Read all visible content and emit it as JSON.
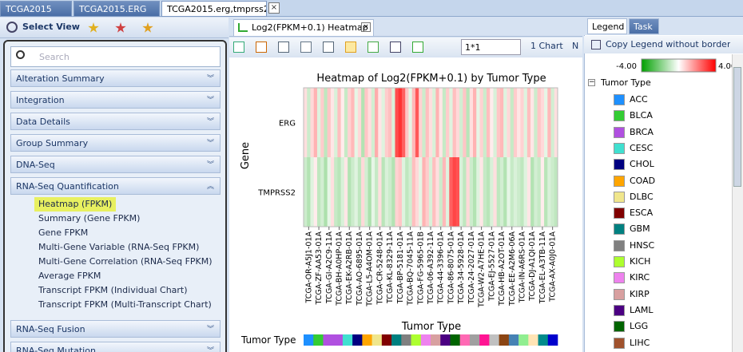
{
  "tabs": [
    "TCGA2015",
    "TCGA2015.ERG",
    "TCGA2015.erg,tmprss2"
  ],
  "left_panel": {
    "toolbar": "Select View",
    "search_placeholder": "Search",
    "sections": [
      {
        "title": "Alteration Summary"
      },
      {
        "title": "Integration"
      },
      {
        "title": "Data Details"
      },
      {
        "title": "Group Summary"
      },
      {
        "title": "DNA-Seq"
      },
      {
        "title": "RNA-Seq Quantification",
        "items": [
          "Heatmap (FPKM)",
          "Summary (Gene FPKM)",
          "Gene FPKM",
          "Multi-Gene Variable (RNA-Seq FPKM)",
          "Multi-Gene Correlation (RNA-Seq FPKM)",
          "Average FPKM",
          "Transcript FPKM (Individual Chart)",
          "Transcript FPKM (Multi-Transcript Chart)"
        ]
      },
      {
        "title": "RNA-Seq Fusion"
      },
      {
        "title": "RNA-Seq Mutation"
      }
    ]
  },
  "center": {
    "tab": "Log2(FPKM+0.1) Heatmap",
    "layout": "1*1",
    "chart_count": "1 Chart",
    "truncated": "N"
  },
  "chart_data": {
    "type": "heatmap",
    "title": "Heatmap of Log2(FPKM+0.1) by Tumor Type",
    "y_label": "Gene",
    "x_label": "Tumor Type",
    "rows": [
      "ERG",
      "TMPRSS2"
    ],
    "columns": [
      null,
      "TCGA-OR-A5J1-01A",
      null,
      null,
      "TCGA-ZF-AA53-01A",
      null,
      null,
      "TCGA-GI-A2C9-11A",
      null,
      null,
      "TCGA-BH-A0HP-01A",
      null,
      null,
      "TCGA-EK-A2RB-01A",
      null,
      null,
      "TCGA-AO-6895-01A",
      null,
      null,
      "TCGA-L5-A4OM-01A",
      null,
      null,
      "TCGA-CR-5248-01A",
      null,
      null,
      "TCGA-KL-8329-11A",
      null,
      null,
      "TCGA-BP-5181-01A",
      null,
      null,
      "TCGA-BQ-7045-11A",
      null,
      null,
      "TCGA-FG-5965-01B",
      null,
      null,
      "TCGA-06-A392-11A",
      null,
      null,
      "TCGA-44-3396-01A",
      null,
      null,
      "TCGA-86-8075-01A",
      null,
      null,
      "TCGA-34-5928-01A",
      null,
      null,
      "TCGA-24-2027-01A",
      null,
      null,
      "TCGA-W2-A7HE-01A",
      null,
      null,
      "TCGA-EJ-5527-01A",
      null,
      null,
      "TCGA-HB-A2OT-01A",
      null,
      null,
      "TCGA-EE-A2M6-06A",
      null,
      null,
      "TCGA-IN-A6RS-01A",
      null,
      null,
      "TCGA-DJ-A1QI-01A",
      null,
      null,
      "TCGA-EL-A3TB-11A",
      null,
      null,
      "TCGA-AX-A0J0-01A",
      null
    ],
    "values": [
      [
        0.5,
        -0.8,
        0.6,
        1.2,
        -0.5,
        0.8,
        -1.0,
        0.9,
        0.4,
        -0.6,
        1.0,
        0.3,
        -0.9,
        0.7,
        1.1,
        -0.4,
        0.6,
        -1.2,
        0.9,
        0.5,
        -0.7,
        1.3,
        0.4,
        -0.5,
        0.8,
        1.0,
        -0.6,
        2.8,
        3.2,
        2.5,
        0.9,
        -0.4,
        1.1,
        2.6,
        0.7,
        -0.8,
        1.0,
        0.5,
        -0.6,
        1.2,
        0.4,
        -0.9,
        0.8,
        -0.5,
        1.0,
        0.6,
        -0.7,
        0.9,
        -1.1,
        0.5,
        1.2,
        -0.4,
        0.7,
        -0.8,
        1.0,
        0.3,
        -0.6,
        0.9,
        1.1,
        -0.5,
        0.6,
        -0.9,
        0.8,
        0.4,
        0.7,
        -0.5,
        1.0,
        0.4,
        -0.8,
        0.9,
        0.6,
        -0.4,
        1.1,
        -0.7,
        0.5
      ],
      [
        -0.8,
        -1.2,
        -0.5,
        0.3,
        -1.0,
        -0.7,
        -1.3,
        -0.4,
        0.5,
        -0.9,
        -1.1,
        -0.6,
        0.4,
        -1.2,
        -0.8,
        -0.5,
        -1.0,
        0.6,
        -0.7,
        -1.3,
        -0.4,
        -0.9,
        0.5,
        -1.1,
        -0.6,
        -0.8,
        -1.2,
        0.7,
        0.9,
        -0.5,
        -1.0,
        -0.7,
        1.0,
        0.6,
        -0.4,
        1.2,
        0.8,
        -0.6,
        1.0,
        0.5,
        -0.8,
        1.1,
        -0.5,
        2.5,
        2.9,
        2.7,
        -0.6,
        -1.0,
        0.6,
        -0.8,
        -1.2,
        -0.5,
        0.4,
        -0.9,
        -1.1,
        -0.6,
        0.5,
        -1.0,
        -0.7,
        -1.2,
        -0.4,
        -0.9,
        -0.6,
        -0.8,
        -1.0,
        -0.5,
        0.4,
        -1.2,
        -0.7,
        -0.9,
        0.3,
        -1.1,
        -0.6,
        -0.8,
        -1.0
      ]
    ],
    "colorscale": {
      "min": {
        "value": -4,
        "label": "-4.00"
      },
      "max": {
        "value": 4,
        "label": "4.00"
      },
      "low_color": "#00a000",
      "mid_color": "#ffffff",
      "high_color": "#ff0000"
    },
    "annotation": {
      "label": "Tumor Type",
      "colors": [
        "#1e90ff",
        "#33cc33",
        "#b050e0",
        "#b050e0",
        "#40e0d0",
        "#000080",
        "#ffa500",
        "#f0e68c",
        "#800000",
        "#008080",
        "#808080",
        "#adff2f",
        "#ee82ee",
        "#d8a0a0",
        "#4b0082",
        "#006400",
        "#ff69b4",
        "#a0a0a0",
        "#ff1493",
        "#c0c0c0",
        "#8b4513",
        "#4682b4",
        "#90ee90",
        "#ffe4b5",
        "#008b8b",
        "#0000cd"
      ]
    }
  },
  "legend_panel": {
    "tabs": [
      "Legend",
      "Task"
    ],
    "copy": "Copy Legend  without border",
    "group": "Tumor Type",
    "items": [
      {
        "name": "ACC",
        "color": "#1e90ff"
      },
      {
        "name": "BLCA",
        "color": "#33cc33"
      },
      {
        "name": "BRCA",
        "color": "#b050e0"
      },
      {
        "name": "CESC",
        "color": "#40e0d0"
      },
      {
        "name": "CHOL",
        "color": "#000080"
      },
      {
        "name": "COAD",
        "color": "#ffa500"
      },
      {
        "name": "DLBC",
        "color": "#f0e68c"
      },
      {
        "name": "ESCA",
        "color": "#800000"
      },
      {
        "name": "GBM",
        "color": "#008080"
      },
      {
        "name": "HNSC",
        "color": "#808080"
      },
      {
        "name": "KICH",
        "color": "#adff2f"
      },
      {
        "name": "KIRC",
        "color": "#ee82ee"
      },
      {
        "name": "KIRP",
        "color": "#d8a0a0"
      },
      {
        "name": "LAML",
        "color": "#4b0082"
      },
      {
        "name": "LGG",
        "color": "#006400"
      },
      {
        "name": "LIHC",
        "color": "#a0522d"
      }
    ]
  }
}
